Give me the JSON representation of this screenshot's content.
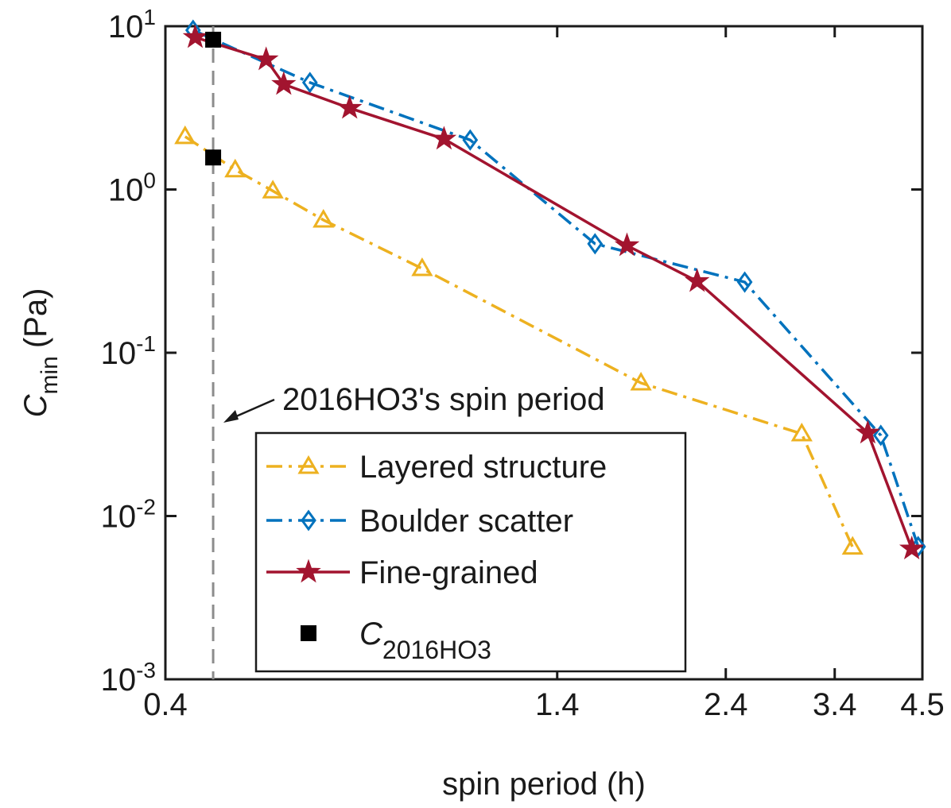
{
  "chart_data": {
    "type": "line",
    "xlabel": "spin period (h)",
    "ylabel": {
      "symbol": "C",
      "subscript": "min",
      "unit": "(Pa)"
    },
    "xscale": "log",
    "yscale": "log",
    "xlim": [
      0.4,
      4.5
    ],
    "ylim": [
      0.001,
      10
    ],
    "xticks": [
      0.4,
      1.4,
      2.4,
      3.4,
      4.5
    ],
    "yticks": [
      {
        "value": 0.001,
        "label": "10^-3"
      },
      {
        "value": 0.01,
        "label": "10^-2"
      },
      {
        "value": 0.1,
        "label": "10^-1"
      },
      {
        "value": 1,
        "label": "10^0"
      },
      {
        "value": 10,
        "label": "10^1"
      }
    ],
    "grid": false,
    "series": [
      {
        "name": "Layered structure",
        "color": "#EDB120",
        "marker": "triangle",
        "dash": "dashdot",
        "x": [
          0.426,
          0.5,
          0.564,
          0.663,
          0.909,
          1.83,
          3.06,
          3.6
        ],
        "values": [
          2.11,
          1.32,
          0.98,
          0.65,
          0.328,
          0.0653,
          0.0319,
          0.00645
        ]
      },
      {
        "name": "Boulder scatter",
        "color": "#0072BD",
        "marker": "diamond",
        "dash": "dashdot",
        "x": [
          0.437,
          0.635,
          1.06,
          1.58,
          2.55,
          3.94,
          4.44
        ],
        "values": [
          9.45,
          4.52,
          2.01,
          0.465,
          0.271,
          0.0312,
          0.0065
        ]
      },
      {
        "name": "Fine-grained",
        "color": "#A2142F",
        "marker": "star",
        "dash": "solid",
        "x": [
          0.44,
          0.552,
          0.584,
          0.721,
          0.975,
          1.75,
          2.19,
          3.78,
          4.35
        ],
        "values": [
          8.55,
          6.25,
          4.41,
          3.15,
          2.04,
          0.454,
          0.274,
          0.0323,
          0.0063
        ]
      },
      {
        "name": "C",
        "name_subscript": "2016HO3",
        "color": "#000000",
        "marker": "square",
        "dash": "none",
        "x": [
          0.466,
          0.466
        ],
        "values": [
          8.27,
          1.57
        ]
      }
    ],
    "vline": {
      "x": 0.466,
      "label": "2016HO3's spin period",
      "color": "#8c8c8c"
    }
  }
}
